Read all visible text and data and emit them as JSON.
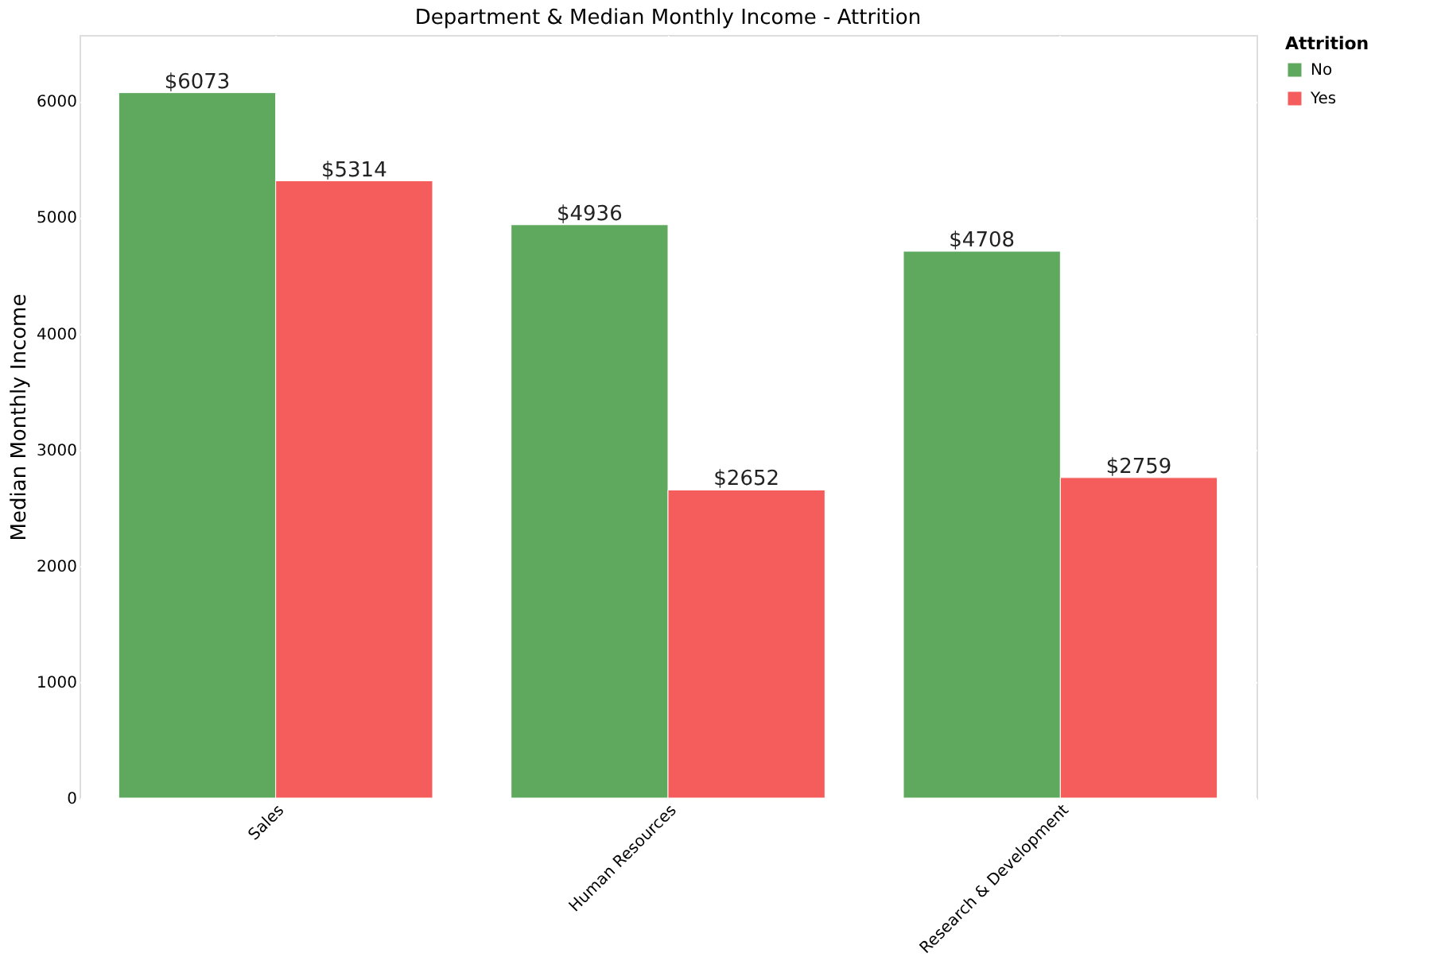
{
  "chart_data": {
    "type": "bar",
    "title": "Department & Median Monthly Income - Attrition",
    "ylabel": "Median Monthly Income",
    "legend_title": "Attrition",
    "categories": [
      "Sales",
      "Human Resources",
      "Research & Development"
    ],
    "series": [
      {
        "name": "No",
        "color": "#5ea95e",
        "values": [
          6073,
          4936,
          4708
        ],
        "value_labels": [
          "$6073",
          "$4936",
          "$4708"
        ]
      },
      {
        "name": "Yes",
        "color": "#f55c5c",
        "values": [
          5314,
          2652,
          2759
        ],
        "value_labels": [
          "$5314",
          "$2652",
          "$2759"
        ]
      }
    ],
    "ylim": [
      0,
      6570
    ],
    "yticks": [
      0,
      1000,
      2000,
      3000,
      4000,
      5000,
      6000
    ],
    "grid": true,
    "legend": "right"
  }
}
